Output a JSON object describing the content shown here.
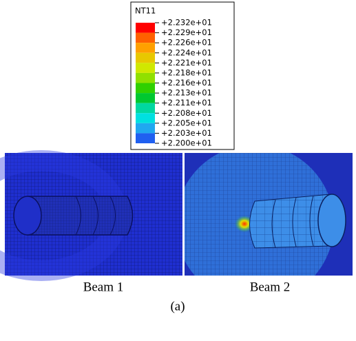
{
  "legend": {
    "title": "NT11",
    "labels": [
      "+2.232e+01",
      "+2.229e+01",
      "+2.226e+01",
      "+2.224e+01",
      "+2.221e+01",
      "+2.218e+01",
      "+2.216e+01",
      "+2.213e+01",
      "+2.211e+01",
      "+2.208e+01",
      "+2.205e+01",
      "+2.203e+01",
      "+2.200e+01"
    ],
    "colors": [
      "#ff0000",
      "#ff6000",
      "#ffa000",
      "#e8c800",
      "#d0e800",
      "#90e000",
      "#30d000",
      "#00c830",
      "#00d8a0",
      "#00e0e0",
      "#20a8f0",
      "#2060f0"
    ]
  },
  "panels": [
    {
      "caption": "Beam 1"
    },
    {
      "caption": "Beam 2"
    }
  ],
  "figure_label": "(a)"
}
